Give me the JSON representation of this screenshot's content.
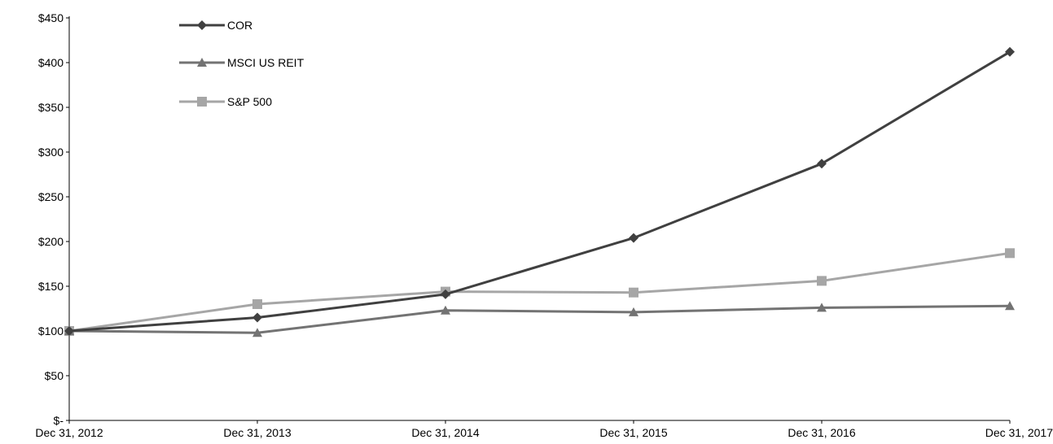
{
  "chart_data": {
    "type": "line",
    "title": "",
    "xlabel": "",
    "ylabel": "",
    "categories": [
      "Dec 31, 2012",
      "Dec 31, 2013",
      "Dec 31, 2014",
      "Dec 31, 2015",
      "Dec 31, 2016",
      "Dec 31, 2017"
    ],
    "y_ticks": [
      "$-",
      "$50",
      "$100",
      "$150",
      "$200",
      "$250",
      "$300",
      "$350",
      "$400",
      "$450"
    ],
    "ylim": [
      0,
      450
    ],
    "grid": false,
    "legend_position": "top-left",
    "series": [
      {
        "name": "COR",
        "values": [
          100,
          115,
          141,
          204,
          287,
          412
        ],
        "color": "#404040",
        "marker": "diamond"
      },
      {
        "name": "MSCI US REIT",
        "values": [
          100,
          98,
          123,
          121,
          126,
          128
        ],
        "color": "#737373",
        "marker": "triangle"
      },
      {
        "name": "S&P 500",
        "values": [
          100,
          130,
          144,
          143,
          156,
          187
        ],
        "color": "#a6a6a6",
        "marker": "square"
      }
    ]
  }
}
